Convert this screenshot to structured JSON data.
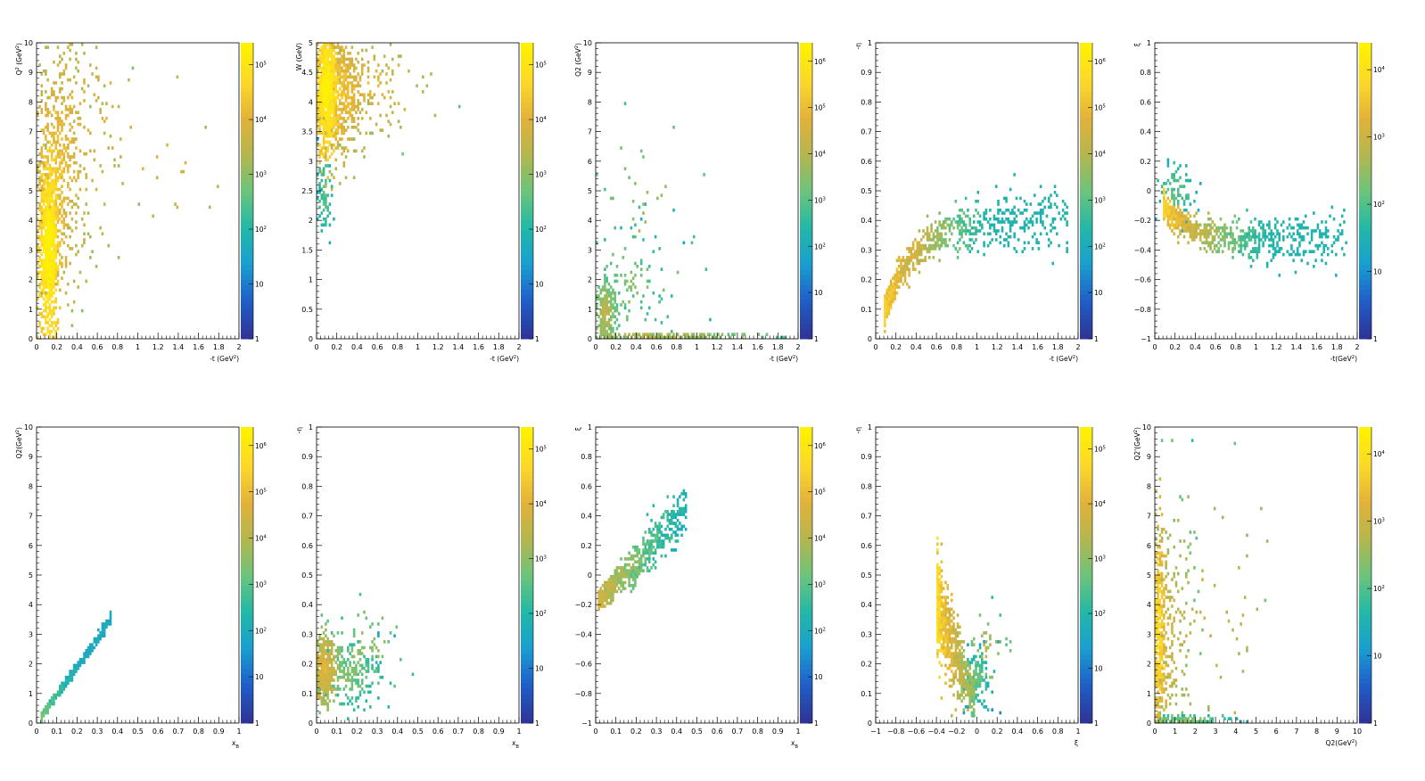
{
  "colors": {
    "palette": [
      "#2e3596",
      "#1f5fc8",
      "#1a9fd0",
      "#23b8a6",
      "#6cc47a",
      "#b5b64f",
      "#e2b23a",
      "#fcd82a",
      "#fff200"
    ]
  },
  "chart_data": [
    {
      "type": "heatmap",
      "ylabel": "Q^2 (GeV^2)",
      "xlabel": "-t (GeV^2)",
      "xlim": [
        0,
        2
      ],
      "ylim": [
        0,
        10
      ],
      "x_ticks": [
        "0",
        "0.2",
        "0.4",
        "0.6",
        "0.8",
        "1",
        "1.2",
        "1.4",
        "1.6",
        "1.8",
        "2"
      ],
      "y_ticks": [
        "0",
        "1",
        "2",
        "3",
        "4",
        "5",
        "6",
        "7",
        "8",
        "9",
        "10"
      ],
      "z_scale": "log",
      "colorbar_ticks": [
        "1",
        "10",
        "10^2",
        "10^3",
        "10^4",
        "10^5"
      ],
      "seed": 11,
      "clusters": [
        {
          "x": 0.12,
          "y": 3.0,
          "sx": 0.05,
          "sy": 1.6,
          "n": 900,
          "z": 0.85
        },
        {
          "x": 0.2,
          "y": 5.5,
          "sx": 0.12,
          "sy": 2.0,
          "n": 500,
          "z": 0.68
        },
        {
          "x": 0.35,
          "y": 6.8,
          "sx": 0.25,
          "sy": 2.2,
          "n": 160,
          "z": 0.62
        },
        {
          "x": 0.9,
          "y": 6.8,
          "sx": 0.5,
          "sy": 2.0,
          "n": 40,
          "z": 0.62
        }
      ]
    },
    {
      "type": "heatmap",
      "ylabel": "W (GeV)",
      "xlabel": "-t (GeV^2)",
      "xlim": [
        0,
        2
      ],
      "ylim": [
        0,
        5
      ],
      "x_ticks": [
        "0",
        "0.2",
        "0.4",
        "0.6",
        "0.8",
        "1",
        "1.2",
        "1.4",
        "1.6",
        "1.8",
        "2"
      ],
      "y_ticks": [
        "0",
        "0.5",
        "1",
        "1.5",
        "2",
        "2.5",
        "3",
        "3.5",
        "4",
        "4.5",
        "5"
      ],
      "z_scale": "log",
      "colorbar_ticks": [
        "1",
        "10",
        "10^2",
        "10^3",
        "10^4",
        "10^5"
      ],
      "seed": 22,
      "clusters": [
        {
          "x": 0.1,
          "y": 4.2,
          "sx": 0.05,
          "sy": 0.5,
          "n": 900,
          "z": 0.85
        },
        {
          "x": 0.22,
          "y": 4.2,
          "sx": 0.12,
          "sy": 0.55,
          "n": 500,
          "z": 0.68
        },
        {
          "x": 0.5,
          "y": 4.3,
          "sx": 0.3,
          "sy": 0.45,
          "n": 150,
          "z": 0.62
        },
        {
          "x": 0.08,
          "y": 2.5,
          "sx": 0.04,
          "sy": 0.4,
          "n": 80,
          "z": 0.35
        }
      ]
    },
    {
      "type": "heatmap",
      "ylabel": "Q2 (GeV^2)",
      "xlabel": "-t (GeV^2)",
      "xlim": [
        0,
        2
      ],
      "ylim": [
        0,
        10
      ],
      "x_ticks": [
        "0",
        "0.2",
        "0.4",
        "0.6",
        "0.8",
        "1",
        "1.2",
        "1.4",
        "1.6",
        "1.8",
        "2"
      ],
      "y_ticks": [
        "0",
        "1",
        "2",
        "3",
        "4",
        "5",
        "6",
        "7",
        "8",
        "9",
        "10"
      ],
      "z_scale": "log",
      "colorbar_ticks": [
        "1",
        "10",
        "10^2",
        "10^3",
        "10^4",
        "10^5",
        "10^6"
      ],
      "seed": 33,
      "clusters": [
        {
          "x": 0.1,
          "y": 0.8,
          "sx": 0.05,
          "sy": 0.6,
          "n": 250,
          "z": 0.5
        },
        {
          "x": 0.3,
          "y": 1.8,
          "sx": 0.2,
          "sy": 1.2,
          "n": 120,
          "z": 0.4
        },
        {
          "x": 0.6,
          "y": 0.1,
          "sx": 0.5,
          "sy": 0.05,
          "n": 200,
          "z": 0.5
        },
        {
          "x": 0.5,
          "y": 4.0,
          "sx": 0.35,
          "sy": 2.0,
          "n": 40,
          "z": 0.45
        }
      ]
    },
    {
      "type": "heatmap",
      "ylabel": "-η",
      "xlabel": "-t (GeV^2)",
      "xlim": [
        0,
        2
      ],
      "ylim": [
        0,
        1
      ],
      "x_ticks": [
        "0",
        "0.2",
        "0.4",
        "0.6",
        "0.8",
        "1",
        "1.2",
        "1.4",
        "1.6",
        "1.8",
        "2"
      ],
      "y_ticks": [
        "0",
        "0.1",
        "0.2",
        "0.3",
        "0.4",
        "0.5",
        "0.6",
        "0.7",
        "0.8",
        "0.9",
        "1"
      ],
      "z_scale": "log",
      "colorbar_ticks": [
        "1",
        "10",
        "10^2",
        "10^3",
        "10^4",
        "10^5",
        "10^6"
      ],
      "seed": 44,
      "curve": {
        "x0": 0.08,
        "x1": 1.9,
        "y0": 0.09,
        "ymax": 0.4,
        "k": 3.2,
        "spread": 0.02,
        "n": 900,
        "zmax": 0.8
      }
    },
    {
      "type": "heatmap",
      "ylabel": "ξ",
      "xlabel": "-t(GeV^2)",
      "xlim": [
        0,
        2
      ],
      "ylim": [
        -1,
        1
      ],
      "x_ticks": [
        "0",
        "0.2",
        "0.4",
        "0.6",
        "0.8",
        "1",
        "1.2",
        "1.4",
        "1.6",
        "1.8",
        "2"
      ],
      "y_ticks": [
        "-1",
        "-0.8",
        "-0.6",
        "-0.4",
        "-0.2",
        "0",
        "0.2",
        "0.4",
        "0.6",
        "0.8",
        "1"
      ],
      "z_scale": "log",
      "colorbar_ticks": [
        "1",
        "10",
        "10^2",
        "10^3",
        "10^4"
      ],
      "seed": 55,
      "curve": {
        "x0": 0.08,
        "x1": 1.9,
        "y0": -0.1,
        "ymax": -0.33,
        "k": 4.0,
        "spread": 0.035,
        "n": 900,
        "zmax": 0.8
      },
      "clusters": [
        {
          "x": 0.2,
          "y": 0.0,
          "sx": 0.1,
          "sy": 0.1,
          "n": 90,
          "z": 0.35
        }
      ]
    },
    {
      "type": "heatmap",
      "ylabel": "Q2(GeV^2)",
      "xlabel": "x_B",
      "xlim": [
        0,
        1
      ],
      "ylim": [
        0,
        10
      ],
      "x_ticks": [
        "0",
        "0.1",
        "0.2",
        "0.3",
        "0.4",
        "0.5",
        "0.6",
        "0.7",
        "0.8",
        "0.9",
        "1"
      ],
      "y_ticks": [
        "0",
        "1",
        "2",
        "3",
        "4",
        "5",
        "6",
        "7",
        "8",
        "9",
        "10"
      ],
      "z_scale": "log",
      "colorbar_ticks": [
        "1",
        "10",
        "10^2",
        "10^3",
        "10^4",
        "10^5",
        "10^6"
      ],
      "seed": 66,
      "band": {
        "x0": 0.02,
        "x1": 0.37,
        "slope": 9.5,
        "spread": 0.04,
        "n": 500,
        "zmax": 0.45
      }
    },
    {
      "type": "heatmap",
      "ylabel": "-η",
      "xlabel": "x_B",
      "xlim": [
        0,
        1
      ],
      "ylim": [
        0,
        1
      ],
      "x_ticks": [
        "0",
        "0.1",
        "0.2",
        "0.3",
        "0.4",
        "0.5",
        "0.6",
        "0.7",
        "0.8",
        "0.9",
        "1"
      ],
      "y_ticks": [
        "0",
        "0.1",
        "0.2",
        "0.3",
        "0.4",
        "0.5",
        "0.6",
        "0.7",
        "0.8",
        "0.9",
        "1"
      ],
      "z_scale": "log",
      "colorbar_ticks": [
        "1",
        "10",
        "10^2",
        "10^3",
        "10^4",
        "10^5"
      ],
      "seed": 77,
      "clusters": [
        {
          "x": 0.04,
          "y": 0.18,
          "sx": 0.03,
          "sy": 0.06,
          "n": 400,
          "z": 0.6
        },
        {
          "x": 0.15,
          "y": 0.16,
          "sx": 0.08,
          "sy": 0.05,
          "n": 200,
          "z": 0.4
        },
        {
          "x": 0.25,
          "y": 0.25,
          "sx": 0.1,
          "sy": 0.08,
          "n": 60,
          "z": 0.45
        }
      ]
    },
    {
      "type": "heatmap",
      "ylabel": "ξ",
      "xlabel": "x_B",
      "xlim": [
        0,
        1
      ],
      "ylim": [
        -1,
        1
      ],
      "x_ticks": [
        "0",
        "0.1",
        "0.2",
        "0.3",
        "0.4",
        "0.5",
        "0.6",
        "0.7",
        "0.8",
        "0.9",
        "1"
      ],
      "y_ticks": [
        "-1",
        "-0.8",
        "-0.6",
        "-0.4",
        "-0.2",
        "0",
        "0.2",
        "0.4",
        "0.6",
        "0.8",
        "1"
      ],
      "z_scale": "log",
      "colorbar_ticks": [
        "1",
        "10",
        "10^2",
        "10^3",
        "10^4",
        "10^5",
        "10^6"
      ],
      "seed": 88,
      "band": {
        "x0": 0.01,
        "x1": 0.45,
        "slope": 1.45,
        "intercept": -0.2,
        "spread": 0.03,
        "n": 700,
        "zmax": 0.65
      }
    },
    {
      "type": "heatmap",
      "ylabel": "-η",
      "xlabel": "ξ",
      "xlim": [
        -1,
        1
      ],
      "ylim": [
        0,
        1
      ],
      "x_ticks": [
        "-1",
        "-0.8",
        "-0.6",
        "-0.4",
        "-0.2",
        "0",
        "0.2",
        "0.4",
        "0.6",
        "0.8",
        "1"
      ],
      "y_ticks": [
        "0",
        "0.1",
        "0.2",
        "0.3",
        "0.4",
        "0.5",
        "0.6",
        "0.7",
        "0.8",
        "0.9",
        "1"
      ],
      "z_scale": "log",
      "colorbar_ticks": [
        "1",
        "10",
        "10^2",
        "10^3",
        "10^4",
        "10^5"
      ],
      "seed": 99,
      "band": {
        "x0": -0.4,
        "x1": -0.02,
        "slope": -0.85,
        "intercept": 0.06,
        "spread": 0.03,
        "n": 700,
        "zmax": 0.85
      },
      "clusters": [
        {
          "x": 0.0,
          "y": 0.15,
          "sx": 0.07,
          "sy": 0.05,
          "n": 150,
          "z": 0.35
        },
        {
          "x": 0.1,
          "y": 0.25,
          "sx": 0.1,
          "sy": 0.06,
          "n": 40,
          "z": 0.5
        }
      ]
    },
    {
      "type": "heatmap",
      "ylabel": "Q2'(GeV^2)",
      "xlabel": "Q2(GeV^2)",
      "xlim": [
        0,
        10
      ],
      "ylim": [
        0,
        10
      ],
      "x_ticks": [
        "0",
        "1",
        "2",
        "3",
        "4",
        "5",
        "6",
        "7",
        "8",
        "9",
        "10"
      ],
      "y_ticks": [
        "0",
        "1",
        "2",
        "3",
        "4",
        "5",
        "6",
        "7",
        "8",
        "9",
        "10"
      ],
      "z_scale": "log",
      "colorbar_ticks": [
        "1",
        "10",
        "10^2",
        "10^3",
        "10^4"
      ],
      "seed": 111,
      "clusters": [
        {
          "x": 0.15,
          "y": 3.0,
          "sx": 0.2,
          "sy": 1.8,
          "n": 500,
          "z": 0.75
        },
        {
          "x": 0.8,
          "y": 3.0,
          "sx": 0.6,
          "sy": 2.2,
          "n": 200,
          "z": 0.55
        },
        {
          "x": 2.5,
          "y": 3.5,
          "sx": 1.8,
          "sy": 2.5,
          "n": 60,
          "z": 0.55
        },
        {
          "x": 1.5,
          "y": 0.1,
          "sx": 1.2,
          "sy": 0.08,
          "n": 120,
          "z": 0.4
        }
      ]
    }
  ]
}
